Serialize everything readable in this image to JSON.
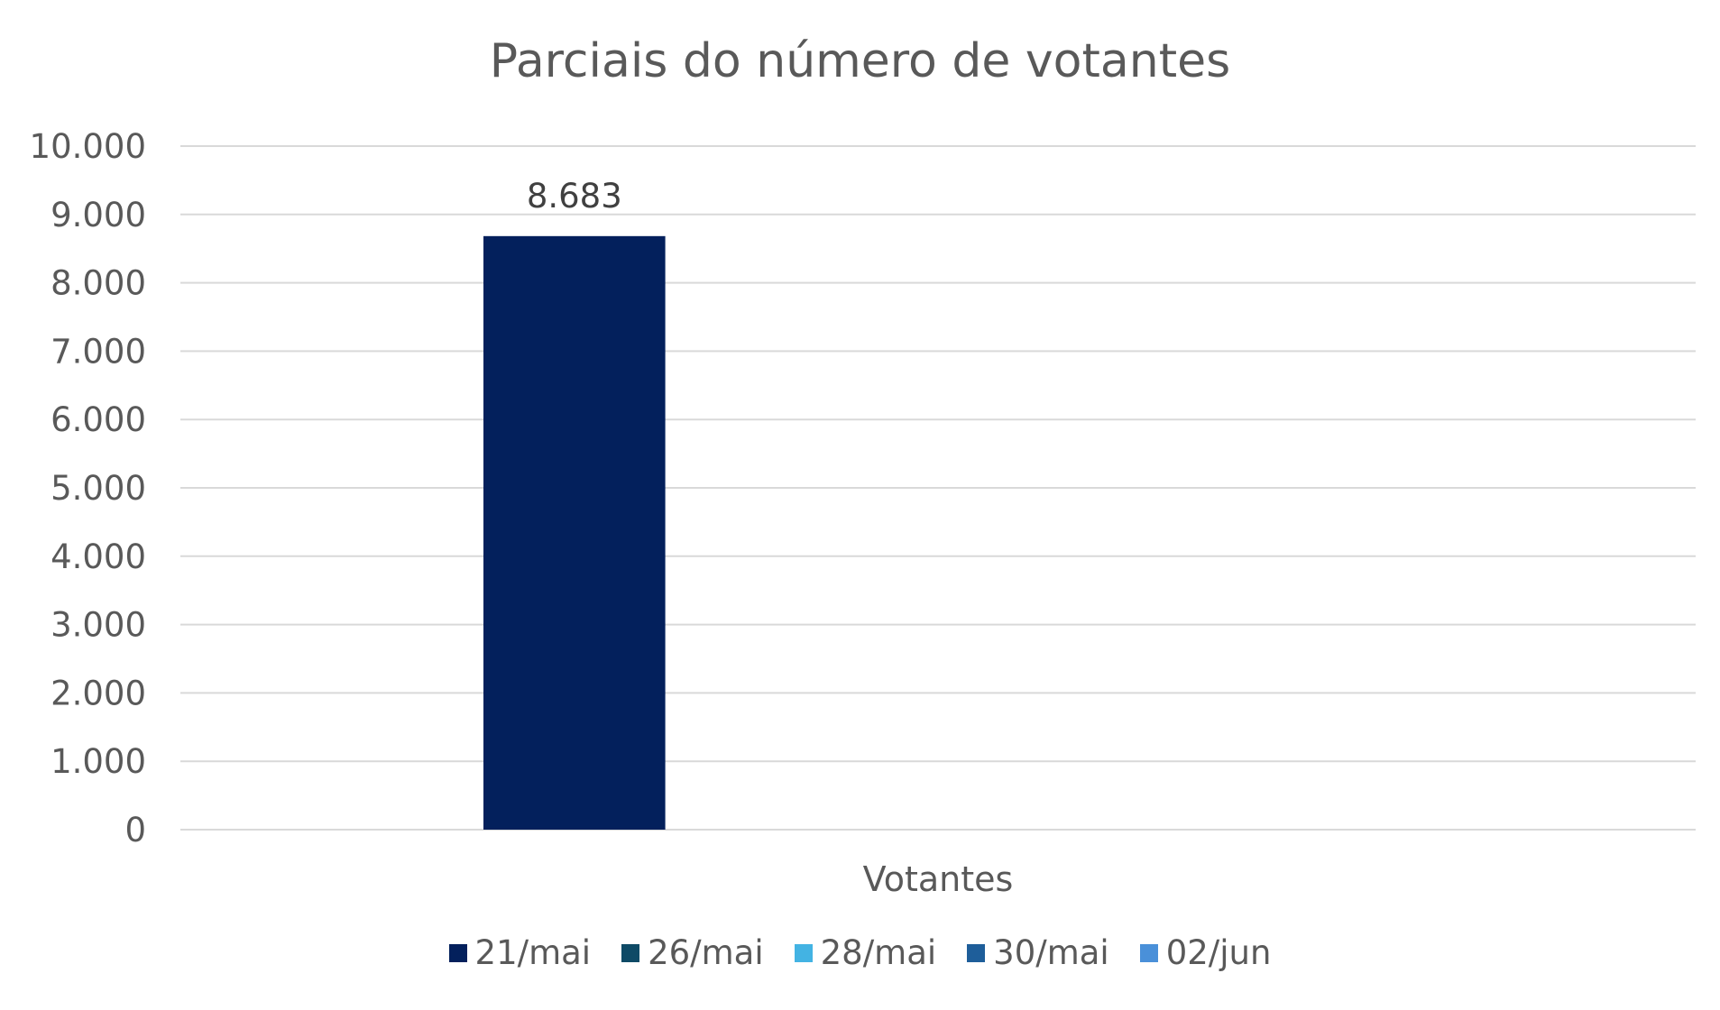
{
  "chart_data": {
    "type": "bar",
    "title": "Parciais do número de votantes",
    "categories": [
      "Votantes"
    ],
    "series": [
      {
        "name": "21/mai",
        "color": "#03205C",
        "values": [
          8683
        ],
        "label": "8.683"
      },
      {
        "name": "26/mai",
        "color": "#0E4A66",
        "values": [
          null
        ]
      },
      {
        "name": "28/mai",
        "color": "#43B3E3",
        "values": [
          null
        ]
      },
      {
        "name": "30/mai",
        "color": "#1E5E9A",
        "values": [
          null
        ]
      },
      {
        "name": "02/jun",
        "color": "#4A90D9",
        "values": [
          null
        ]
      }
    ],
    "ylim": [
      0,
      10000
    ],
    "yticks": [
      "0",
      "1.000",
      "2.000",
      "3.000",
      "4.000",
      "5.000",
      "6.000",
      "7.000",
      "8.000",
      "9.000",
      "10.000"
    ],
    "grid": true,
    "legend": "bottom"
  }
}
